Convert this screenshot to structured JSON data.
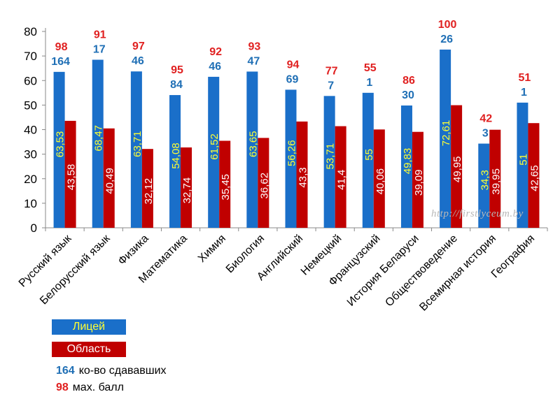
{
  "chart_data": {
    "type": "bar",
    "categories": [
      "Русский язык",
      "Белорусский язык",
      "Физика",
      "Математика",
      "Химия",
      "Биология",
      "Английский",
      "Немецкий",
      "Французский",
      "История Беларуси",
      "Обществоведение",
      "Всемирная история",
      "География"
    ],
    "series": [
      {
        "name": "Лицей",
        "values": [
          63.53,
          68.47,
          63.71,
          54.08,
          61.52,
          63.65,
          56.26,
          53.71,
          55,
          49.83,
          72.61,
          34.3,
          51
        ],
        "value_labels": [
          "63,53",
          "68,47",
          "63,71",
          "54,08",
          "61,52",
          "63,65",
          "56,26",
          "53,71",
          "55",
          "49,83",
          "72,61",
          "34,3",
          "51"
        ]
      },
      {
        "name": "Область",
        "values": [
          43.58,
          40.49,
          32.12,
          32.74,
          35.45,
          36.62,
          43.3,
          41.4,
          40.06,
          39.09,
          49.95,
          39.95,
          42.65
        ],
        "value_labels": [
          "43,58",
          "40,49",
          "32,12",
          "32,74",
          "35,45",
          "36,62",
          "43,3",
          "41,4",
          "40,06",
          "39,09",
          "49,95",
          "39,95",
          "42,65"
        ]
      }
    ],
    "participants": [
      164,
      17,
      46,
      84,
      46,
      47,
      69,
      7,
      1,
      30,
      26,
      3,
      1
    ],
    "max_scores": [
      98,
      91,
      97,
      95,
      92,
      93,
      94,
      77,
      55,
      86,
      100,
      42,
      51
    ],
    "ylim": [
      0,
      80
    ],
    "yticks": [
      0,
      10,
      20,
      30,
      40,
      50,
      60,
      70,
      80
    ],
    "grid": false,
    "legend_position": "bottom-left",
    "colors": {
      "lyceum": "#1a6fc9",
      "region": "#c00000",
      "lyceum_label": "#ffff33",
      "region_label": "#ffffff",
      "participants_text": "#1f6fb5",
      "max_text": "#e02020"
    }
  },
  "legend": {
    "lyceum_label": "Лицей",
    "region_label": "Область",
    "participants_number": "164",
    "participants_label": "ко-во сдававших",
    "max_number": "98",
    "max_label": "мах. балл"
  },
  "watermark": "http://firstlyceum.by"
}
